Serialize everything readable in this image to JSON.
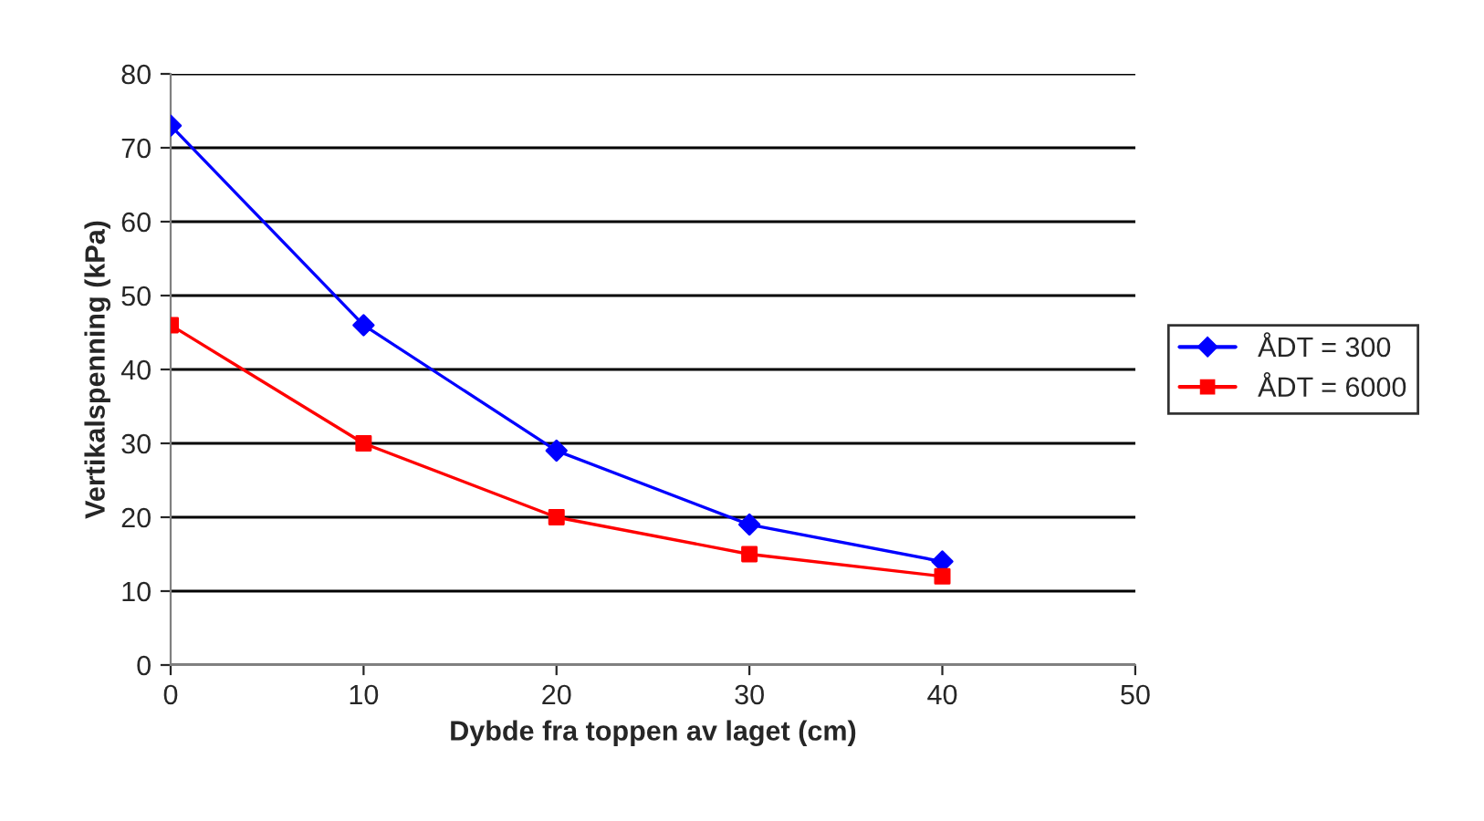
{
  "chart_data": {
    "type": "line",
    "xlabel": "Dybde fra toppen av laget (cm)",
    "ylabel": "Vertikalspenning (kPa)",
    "x": [
      0,
      10,
      20,
      30,
      40
    ],
    "series": [
      {
        "name": "ÅDT = 300",
        "color": "#0000ff",
        "marker": "diamond",
        "values": [
          73,
          46,
          29,
          19,
          14
        ]
      },
      {
        "name": "ÅDT = 6000",
        "color": "#ff0000",
        "marker": "square",
        "values": [
          46,
          30,
          20,
          15,
          12
        ]
      }
    ],
    "xlim": [
      0,
      50
    ],
    "xticks": [
      0,
      10,
      20,
      30,
      40,
      50
    ],
    "ylim": [
      0,
      80
    ],
    "yticks": [
      0,
      10,
      20,
      30,
      40,
      50,
      60,
      70,
      80
    ],
    "grid": "y",
    "legend": "right",
    "line_style": "solid"
  }
}
